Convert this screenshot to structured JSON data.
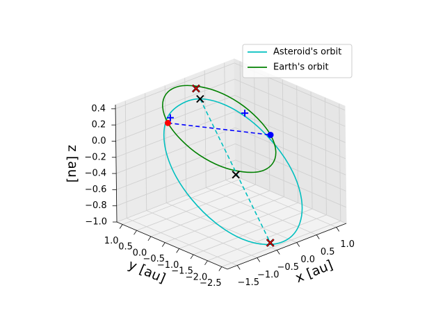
{
  "chart_data": {
    "type": "line3d",
    "xlabel": "x [au]",
    "ylabel": "y [au]",
    "zlabel": "z [au]",
    "xlim": [
      -1.75,
      1.25
    ],
    "ylim": [
      -2.7,
      1.2
    ],
    "zlim": [
      -1.0,
      0.45
    ],
    "xticks": [
      {
        "value": -1.5,
        "label": "−1.5"
      },
      {
        "value": -1.0,
        "label": "−1.0"
      },
      {
        "value": -0.5,
        "label": "−0.5"
      },
      {
        "value": 0.0,
        "label": "0.0"
      },
      0.5,
      {
        "value": 1.0,
        "label": "1.0"
      }
    ],
    "yticks": [
      {
        "value": 1.0,
        "label": "1.0"
      },
      0.5,
      {
        "value": 0.0,
        "label": "0.0"
      },
      {
        "value": -0.5,
        "label": "−0.5"
      },
      {
        "value": -1.0,
        "label": "−1.0"
      },
      {
        "value": -1.5,
        "label": "−1.5"
      },
      {
        "value": -2.0,
        "label": "−2.0"
      },
      {
        "value": -2.5,
        "label": "−2.5"
      }
    ],
    "zticks": [
      0.4,
      0.2,
      {
        "value": 0.0,
        "label": "0.0"
      },
      {
        "value": -0.2,
        "label": "−0.2"
      },
      {
        "value": -0.4,
        "label": "−0.4"
      },
      {
        "value": -0.6,
        "label": "−0.6"
      },
      {
        "value": -0.8,
        "label": "−0.8"
      },
      {
        "value": -1.0,
        "label": "−1.0"
      }
    ],
    "grid": true,
    "legend": "upper right",
    "series": [
      {
        "name": "Asteroid's orbit",
        "color": "#00bfbf",
        "closed": true,
        "x": [
          -0.52,
          -0.15,
          0.23,
          0.58,
          0.84,
          0.97,
          0.94,
          0.77,
          0.48,
          0.11,
          -0.27,
          -0.62,
          -0.88,
          -1.01,
          -0.98,
          -0.81
        ],
        "y": [
          0.0,
          -0.38,
          -0.78,
          -1.14,
          -1.4,
          -1.52,
          -1.49,
          -1.31,
          -1.0,
          -0.62,
          -0.22,
          0.14,
          0.4,
          0.52,
          0.49,
          0.31
        ],
        "z": [
          0.47,
          0.39,
          0.18,
          -0.13,
          -0.48,
          -0.83,
          -1.12,
          -1.31,
          -1.37,
          -1.29,
          -1.08,
          -0.77,
          -0.42,
          -0.07,
          0.22,
          0.39
        ]
      },
      {
        "name": "Earth's orbit",
        "color": "#008000",
        "closed": true,
        "x": [
          -0.58,
          -0.26,
          0.1,
          0.44,
          0.72,
          0.89,
          0.92,
          0.81,
          0.58,
          0.26,
          -0.1,
          -0.44,
          -0.72,
          -0.89,
          -0.92,
          -0.81
        ],
        "y": [
          0.0,
          -0.31,
          -0.57,
          -0.74,
          -0.8,
          -0.74,
          -0.57,
          -0.31,
          0.0,
          0.31,
          0.57,
          0.74,
          0.8,
          0.74,
          0.57,
          0.31
        ],
        "z": [
          0.64,
          0.56,
          0.39,
          0.16,
          -0.09,
          -0.33,
          -0.52,
          -0.63,
          -0.64,
          -0.56,
          -0.39,
          -0.16,
          0.09,
          0.33,
          0.52,
          0.63
        ]
      },
      {
        "color": "#0000ff",
        "linestyle": "dashed",
        "x": [
          -0.72,
          0.72
        ],
        "y": [
          0.8,
          -0.8
        ],
        "z": [
          0.09,
          -0.09
        ]
      },
      {
        "color": "#00bfbf",
        "linestyle": "dashed",
        "x": [
          -0.47,
          0.54
        ],
        "y": [
          0.0,
          -1.0
        ],
        "z": [
          0.46,
          -1.36
        ]
      },
      {
        "color": "#ff0000",
        "marker": "o",
        "x": [
          -0.72
        ],
        "y": [
          0.8
        ],
        "z": [
          0.09
        ]
      },
      {
        "color": "#0000ff",
        "marker": "o",
        "x": [
          0.72
        ],
        "y": [
          -0.8
        ],
        "z": [
          -0.09
        ]
      },
      {
        "color": "#0000ff",
        "marker": "+",
        "x": [
          -0.8,
          0.08
        ],
        "y": [
          0.6,
          -0.8
        ],
        "z": [
          0.2,
          0.3
        ]
      },
      {
        "color": "#000000",
        "marker": "x",
        "x": [
          -0.47,
          0.05
        ],
        "y": [
          0.0,
          -0.5
        ],
        "z": [
          0.46,
          -0.5
        ]
      },
      {
        "color": "#ff0000",
        "edgecolor": "#000000",
        "marker": "x",
        "x": [
          -0.5,
          0.54
        ],
        "y": [
          0.1,
          -1.0
        ],
        "z": [
          0.58,
          -1.36
        ]
      }
    ]
  }
}
